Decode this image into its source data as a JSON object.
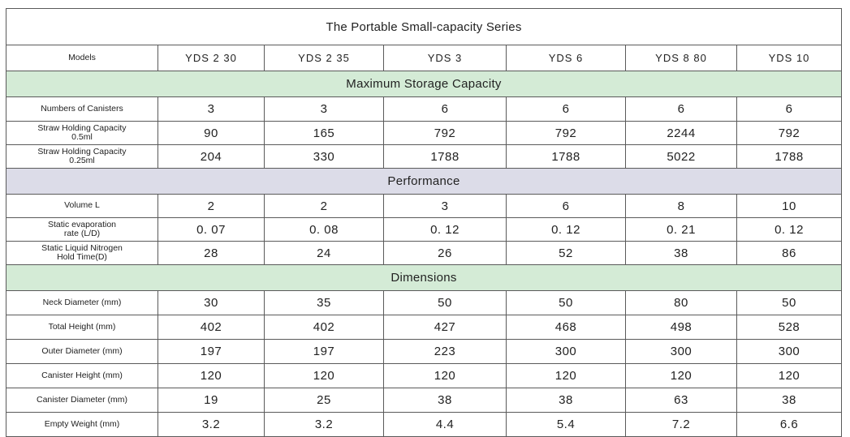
{
  "title": "The Portable Small-capacity Series",
  "models_label": "Models",
  "models": [
    "YDS  2  30",
    "YDS  2  35",
    "YDS  3",
    "YDS  6",
    "YDS  8  80",
    "YDS  10"
  ],
  "sections": {
    "storage": "Maximum Storage Capacity",
    "performance": "Performance",
    "dimensions": "Dimensions"
  },
  "rows": {
    "canisters": {
      "label": "Numbers of Canisters",
      "values": [
        "3",
        "3",
        "6",
        "6",
        "6",
        "6"
      ]
    },
    "straw05": {
      "label_line1": "Straw Holding Capacity",
      "label_line2": "0.5ml",
      "values": [
        "90",
        "165",
        "792",
        "792",
        "2244",
        "792"
      ]
    },
    "straw025": {
      "label_line1": "Straw Holding Capacity",
      "label_line2": "0.25ml",
      "values": [
        "204",
        "330",
        "1788",
        "1788",
        "5022",
        "1788"
      ]
    },
    "volume": {
      "label": "Volume L",
      "values": [
        "2",
        "2",
        "3",
        "6",
        "8",
        "10"
      ]
    },
    "evaporation": {
      "label_line1": "Static evaporation",
      "label_line2": "rate (L/D)",
      "values": [
        "0. 07",
        "0. 08",
        "0. 12",
        "0. 12",
        "0. 21",
        "0. 12"
      ]
    },
    "hold_time": {
      "label_line1": "Static Liquid Nitrogen",
      "label_line2": "Hold Time(D)",
      "values": [
        "28",
        "24",
        "26",
        "52",
        "38",
        "86"
      ]
    },
    "neck": {
      "label": "Neck Diameter (mm)",
      "values": [
        "30",
        "35",
        "50",
        "50",
        "80",
        "50"
      ]
    },
    "height": {
      "label": "Total Height (mm)",
      "values": [
        "402",
        "402",
        "427",
        "468",
        "498",
        "528"
      ]
    },
    "outer": {
      "label": "Outer Diameter (mm)",
      "values": [
        "197",
        "197",
        "223",
        "300",
        "300",
        "300"
      ]
    },
    "canister_height": {
      "label": "Canister Height (mm)",
      "values": [
        "120",
        "120",
        "120",
        "120",
        "120",
        "120"
      ]
    },
    "canister_diameter": {
      "label": "Canister Diameter (mm)",
      "values": [
        "19",
        "25",
        "38",
        "38",
        "63",
        "38"
      ]
    },
    "weight": {
      "label": "Empty Weight (mm)",
      "values": [
        "3.2",
        "3.2",
        "4.4",
        "5.4",
        "7.2",
        "6.6"
      ]
    }
  }
}
